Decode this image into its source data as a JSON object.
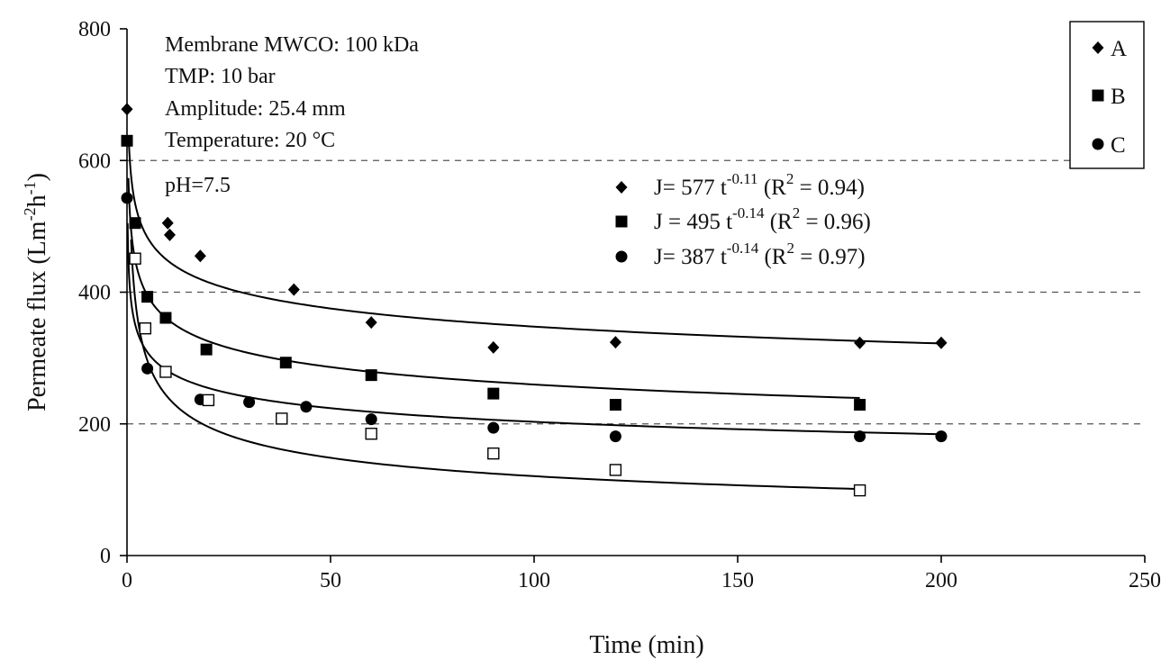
{
  "chart_data": {
    "type": "scatter",
    "xlabel": "Time (min)",
    "ylabel_main": "Permeate flux (Lm",
    "ylabel_sup1": "-2",
    "ylabel_mid": "h",
    "ylabel_sup2": "-1",
    "ylabel_end": ")",
    "xlim": [
      0,
      250
    ],
    "ylim": [
      0,
      800
    ],
    "xticks": [
      0,
      50,
      100,
      150,
      200,
      250
    ],
    "yticks": [
      0,
      200,
      400,
      600,
      800
    ],
    "grid_y": [
      200,
      400,
      600
    ],
    "annotations": [
      "Membrane MWCO: 100 kDa",
      "TMP: 10 bar",
      "Amplitude: 25.4 mm",
      "Temperature: 20 °C",
      "pH=7.5"
    ],
    "equations": [
      {
        "marker": "diamond",
        "pre": "J= 577 t",
        "exp": "-0.11",
        "mid": " (R",
        "r2exp": "2",
        "post": " = 0.94)"
      },
      {
        "marker": "square",
        "pre": "J = 495 t",
        "exp": "-0.14",
        "mid": " (R",
        "r2exp": "2",
        "post": " = 0.96)"
      },
      {
        "marker": "circle",
        "pre": "J= 387 t",
        "exp": "-0.14",
        "mid": " (R",
        "r2exp": "2",
        "post": " = 0.97)"
      }
    ],
    "legend_position": "top-right",
    "series": [
      {
        "name": "A",
        "marker": "diamond",
        "x": [
          0,
          10,
          10.5,
          18,
          41,
          60,
          90,
          120,
          180,
          200
        ],
        "y": [
          678,
          505,
          487,
          455,
          404,
          354,
          316,
          324,
          323,
          323
        ],
        "fit": {
          "a": 577,
          "b": -0.11,
          "x_start": 0.45,
          "x_end": 200
        }
      },
      {
        "name": "B",
        "marker": "square",
        "x": [
          0,
          2,
          5,
          9.5,
          19.5,
          39,
          60,
          90,
          120,
          180
        ],
        "y": [
          630,
          505,
          393,
          361,
          313,
          293,
          274,
          246,
          229,
          229
        ],
        "fit": {
          "a": 495,
          "b": -0.14,
          "x_start": 0.35,
          "x_end": 180
        }
      },
      {
        "name": "C",
        "marker": "circle",
        "x": [
          0,
          5,
          18,
          30,
          44,
          60,
          90,
          120,
          180,
          200
        ],
        "y": [
          543,
          284,
          237,
          233,
          226,
          207,
          194,
          181,
          181,
          181
        ],
        "fit": {
          "a": 387,
          "b": -0.14,
          "x_start": 0.15,
          "x_end": 200
        }
      },
      {
        "name": "",
        "marker": "open-square",
        "x": [
          2,
          4.5,
          9.5,
          20,
          38,
          60,
          90,
          120,
          180
        ],
        "y": [
          451,
          345,
          279,
          236,
          208,
          185,
          155,
          130,
          99
        ],
        "fit": {
          "a": 480,
          "b": -0.3,
          "x_start": 1,
          "x_end": 180
        }
      }
    ]
  }
}
